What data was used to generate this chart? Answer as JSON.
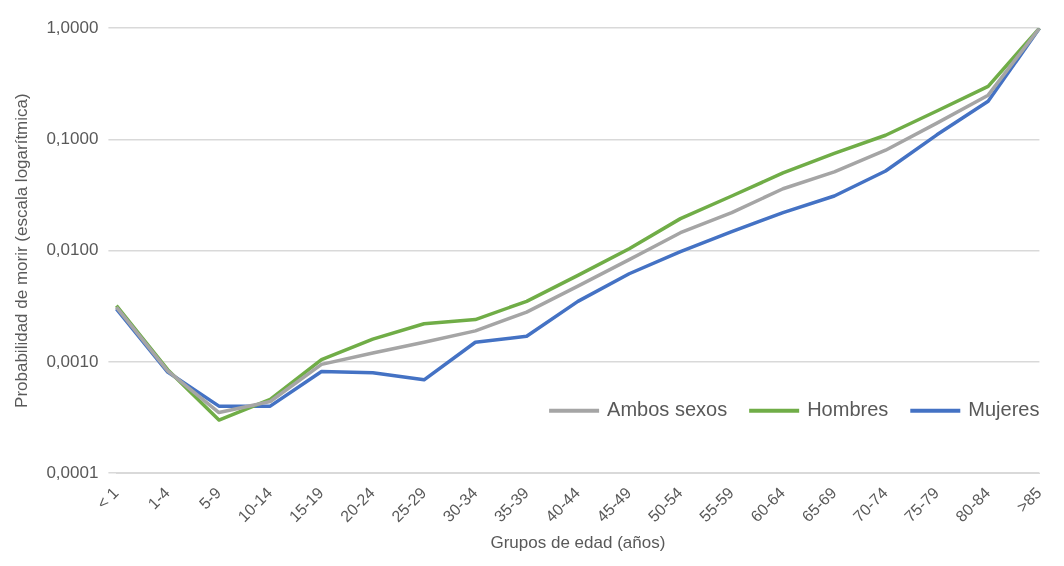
{
  "chart_data": {
    "type": "line",
    "xlabel": "Grupos de edad (años)",
    "ylabel": "Probabilidad de morir (escala logarítmica)",
    "categories": [
      "< 1",
      "1-4",
      "5-9",
      "10-14",
      "15-19",
      "20-24",
      "25-29",
      "30-34",
      "35-39",
      "40-44",
      "45-49",
      "50-54",
      "55-59",
      "60-64",
      "65-69",
      "70-74",
      "75-79",
      "80-84",
      ">85"
    ],
    "series": [
      {
        "name": "Ambos sexos",
        "color": "#a5a5a5",
        "values": [
          0.0031,
          0.00083,
          0.00035,
          0.00044,
          0.00095,
          0.0012,
          0.0015,
          0.0019,
          0.0028,
          0.0048,
          0.0083,
          0.0145,
          0.022,
          0.036,
          0.051,
          0.08,
          0.14,
          0.25,
          1.0
        ]
      },
      {
        "name": "Hombres",
        "color": "#70ad47",
        "values": [
          0.0032,
          0.00085,
          0.0003,
          0.00046,
          0.00105,
          0.0016,
          0.0022,
          0.0024,
          0.0035,
          0.006,
          0.0104,
          0.0194,
          0.031,
          0.05,
          0.075,
          0.109,
          0.18,
          0.3,
          1.0
        ]
      },
      {
        "name": "Mujeres",
        "color": "#4472c4",
        "values": [
          0.003,
          0.00081,
          0.0004,
          0.0004,
          0.00082,
          0.0008,
          0.00069,
          0.0015,
          0.0017,
          0.0035,
          0.0062,
          0.0098,
          0.0148,
          0.022,
          0.031,
          0.052,
          0.11,
          0.22,
          1.0
        ]
      }
    ],
    "ylim": [
      0.0001,
      1
    ],
    "yticks": [
      {
        "value": 0.0001,
        "label": "0,0001"
      },
      {
        "value": 0.001,
        "label": "0,0010"
      },
      {
        "value": 0.01,
        "label": "0,0100"
      },
      {
        "value": 0.1,
        "label": "0,1000"
      },
      {
        "value": 1,
        "label": "1,0000"
      }
    ],
    "log": "y",
    "grid": "y",
    "legend": "bottom right",
    "marker": "none",
    "line_style": "solid"
  }
}
